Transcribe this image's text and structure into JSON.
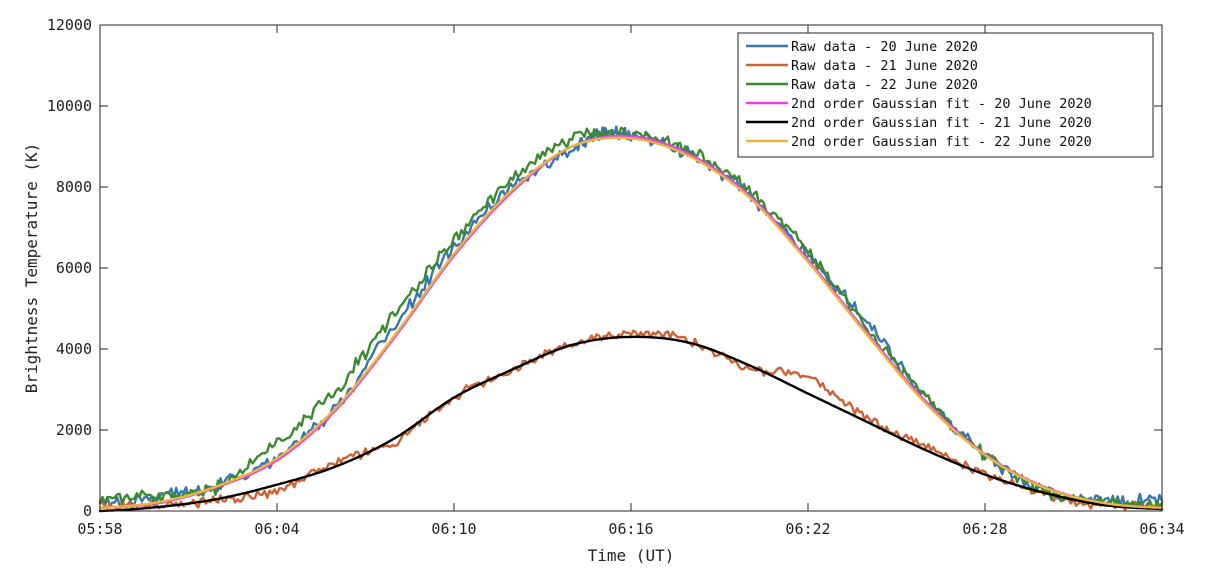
{
  "chart_data": {
    "type": "line",
    "xlabel": "Time (UT)",
    "ylabel": "Brightness Temperature (K)",
    "x_unit": "time of day (UT)",
    "xlim": [
      "05:58",
      "06:34"
    ],
    "ylim": [
      0,
      12000
    ],
    "x_ticks": [
      "05:58",
      "06:04",
      "06:10",
      "06:16",
      "06:22",
      "06:28",
      "06:34"
    ],
    "y_ticks": [
      "0",
      "2000",
      "4000",
      "6000",
      "8000",
      "10000",
      "12000"
    ],
    "grid": false,
    "legend_position": "top-right",
    "colors": {
      "raw_20": "#3775b3",
      "raw_21": "#cf6232",
      "raw_22": "#3b8a2e",
      "fit_20": "#ee3fe6",
      "fit_21": "#000000",
      "fit_22": "#e6b73b"
    },
    "series": [
      {
        "name": "Raw data - 20 June 2020",
        "color": "#3775b3",
        "kind": "raw",
        "x": [
          "05:58",
          "06:00",
          "06:02",
          "06:04",
          "06:06",
          "06:08",
          "06:10",
          "06:12",
          "06:14",
          "06:15",
          "06:16",
          "06:18",
          "06:20",
          "06:22",
          "06:24",
          "06:26",
          "06:28",
          "06:30",
          "06:32",
          "06:34"
        ],
        "y": [
          200,
          350,
          650,
          1300,
          2600,
          4600,
          6500,
          8000,
          8900,
          9300,
          9300,
          8800,
          7800,
          6300,
          4700,
          2800,
          1400,
          500,
          250,
          250
        ]
      },
      {
        "name": "Raw data - 21 June 2020",
        "color": "#cf6232",
        "kind": "raw",
        "x": [
          "05:58",
          "06:00",
          "06:02",
          "06:04",
          "06:06",
          "06:08",
          "06:10",
          "06:12",
          "06:14",
          "06:16",
          "06:18",
          "06:20",
          "06:22",
          "06:24",
          "06:26",
          "06:28",
          "06:30",
          "06:32",
          "06:34"
        ],
        "y": [
          150,
          150,
          250,
          500,
          1200,
          1700,
          2800,
          3500,
          4100,
          4400,
          4200,
          3500,
          3300,
          2300,
          1600,
          900,
          400,
          150,
          150
        ]
      },
      {
        "name": "Raw data - 22 June 2020",
        "color": "#3b8a2e",
        "kind": "raw",
        "x": [
          "05:58",
          "06:00",
          "06:02",
          "06:04",
          "06:06",
          "06:08",
          "06:10",
          "06:12",
          "06:14",
          "06:16",
          "06:18",
          "06:20",
          "06:22",
          "06:24",
          "06:26",
          "06:28",
          "06:30",
          "06:32",
          "06:34"
        ],
        "y": [
          300,
          350,
          600,
          1700,
          3000,
          4900,
          6700,
          8200,
          9200,
          9300,
          8900,
          7900,
          6400,
          4500,
          2800,
          1400,
          500,
          250,
          200
        ]
      },
      {
        "name": "2nd order Gaussian fit - 20 June 2020",
        "color": "#ee3fe6",
        "kind": "fit",
        "x": [
          "05:58",
          "06:00",
          "06:02",
          "06:04",
          "06:06",
          "06:08",
          "06:10",
          "06:12",
          "06:14",
          "06:16",
          "06:18",
          "06:20",
          "06:22",
          "06:24",
          "06:26",
          "06:28",
          "06:30",
          "06:32",
          "06:34"
        ],
        "y": [
          80,
          200,
          600,
          1250,
          2500,
          4300,
          6300,
          7900,
          9000,
          9250,
          8800,
          7800,
          6200,
          4400,
          2700,
          1400,
          600,
          200,
          80
        ]
      },
      {
        "name": "2nd order Gaussian fit - 21 June 2020",
        "color": "#000000",
        "kind": "fit",
        "x": [
          "05:58",
          "06:00",
          "06:02",
          "06:04",
          "06:06",
          "06:08",
          "06:10",
          "06:12",
          "06:14",
          "06:16",
          "06:18",
          "06:20",
          "06:22",
          "06:24",
          "06:26",
          "06:28",
          "06:30",
          "06:32",
          "06:34"
        ],
        "y": [
          0,
          100,
          300,
          650,
          1100,
          1800,
          2800,
          3500,
          4100,
          4300,
          4150,
          3600,
          2900,
          2200,
          1500,
          900,
          450,
          150,
          50
        ]
      },
      {
        "name": "2nd order Gaussian fit - 22 June 2020",
        "color": "#e6b73b",
        "kind": "fit",
        "x": [
          "05:58",
          "06:00",
          "06:02",
          "06:04",
          "06:06",
          "06:08",
          "06:10",
          "06:12",
          "06:14",
          "06:16",
          "06:18",
          "06:20",
          "06:22",
          "06:24",
          "06:26",
          "06:28",
          "06:30",
          "06:32",
          "06:34"
        ],
        "y": [
          80,
          220,
          620,
          1300,
          2550,
          4350,
          6350,
          7950,
          9000,
          9200,
          8750,
          7750,
          6150,
          4350,
          2650,
          1380,
          580,
          200,
          80
        ]
      }
    ]
  }
}
